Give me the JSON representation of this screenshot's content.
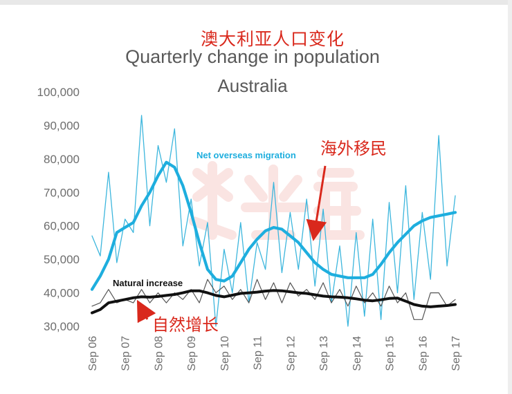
{
  "chart_data": {
    "type": "line",
    "title_cn": "澳大利亚人口变化",
    "title": "Quarterly change in population",
    "subtitle": "Australia",
    "ylim": [
      30000,
      100000
    ],
    "yticks": [
      30000,
      40000,
      50000,
      60000,
      70000,
      80000,
      90000,
      100000
    ],
    "ytick_labels": [
      "30,000",
      "40,000",
      "50,000",
      "60,000",
      "70,000",
      "80,000",
      "90,000",
      "100,000"
    ],
    "xtick_labels": [
      "Sep 06",
      "Sep 07",
      "Sep 08",
      "Sep 09",
      "Sep 10",
      "Sep 11",
      "Sep 12",
      "Sep 13",
      "Sep 14",
      "Sep 15",
      "Sep 16",
      "Sep 17"
    ],
    "x": [
      2006.75,
      2007.0,
      2007.25,
      2007.5,
      2007.75,
      2008.0,
      2008.25,
      2008.5,
      2008.75,
      2009.0,
      2009.25,
      2009.5,
      2009.75,
      2010.0,
      2010.25,
      2010.5,
      2010.75,
      2011.0,
      2011.25,
      2011.5,
      2011.75,
      2012.0,
      2012.25,
      2012.5,
      2012.75,
      2013.0,
      2013.25,
      2013.5,
      2013.75,
      2014.0,
      2014.25,
      2014.5,
      2014.75,
      2015.0,
      2015.25,
      2015.5,
      2015.75,
      2016.0,
      2016.25,
      2016.5,
      2016.75,
      2017.0,
      2017.25,
      2017.5,
      2017.75
    ],
    "series": [
      {
        "name": "Net overseas migration",
        "role": "quarterly",
        "color": "#3cb6dd",
        "values": [
          57000,
          51000,
          76000,
          49000,
          62000,
          58000,
          93000,
          60000,
          84000,
          73000,
          89000,
          54000,
          68000,
          48000,
          61000,
          30000,
          53000,
          40000,
          61000,
          37000,
          55000,
          47000,
          73000,
          46000,
          64000,
          47000,
          68000,
          42000,
          65000,
          37000,
          54000,
          30000,
          58000,
          33000,
          62000,
          32000,
          67000,
          40000,
          72000,
          38000,
          64000,
          44000,
          87000,
          48000,
          69000
        ]
      },
      {
        "name": "Net overseas migration",
        "role": "trend",
        "color": "#1eaede",
        "values": [
          41000,
          45000,
          50000,
          58000,
          59500,
          61000,
          66000,
          70000,
          75000,
          79000,
          77500,
          72000,
          64000,
          55000,
          47000,
          44000,
          43500,
          45000,
          49000,
          53000,
          56000,
          58500,
          59500,
          59000,
          57000,
          55000,
          52000,
          49000,
          47000,
          45500,
          45000,
          44500,
          44500,
          44500,
          45500,
          48500,
          52000,
          55000,
          57500,
          60000,
          61500,
          62500,
          63000,
          63500,
          64000
        ]
      },
      {
        "name": "Natural increase",
        "role": "quarterly",
        "color": "#555555",
        "values": [
          36000,
          37000,
          41000,
          37000,
          38000,
          37000,
          41000,
          37000,
          40000,
          37000,
          40000,
          38000,
          41000,
          37000,
          44000,
          40000,
          42000,
          38000,
          41000,
          37000,
          44000,
          38000,
          43000,
          37000,
          43000,
          39000,
          41000,
          38000,
          43000,
          37000,
          41000,
          36000,
          42000,
          37000,
          40000,
          36000,
          42000,
          37000,
          40000,
          32000,
          32000,
          40000,
          40000,
          36000,
          38000
        ]
      },
      {
        "name": "Natural increase",
        "role": "trend",
        "color": "#111111",
        "values": [
          34000,
          35000,
          37000,
          37500,
          38000,
          38500,
          38800,
          38700,
          38900,
          39200,
          39500,
          40000,
          40600,
          40600,
          40000,
          39200,
          38800,
          39300,
          39800,
          40000,
          40200,
          40500,
          40700,
          40600,
          40300,
          40000,
          39800,
          39400,
          39000,
          38800,
          38700,
          38500,
          38200,
          37800,
          37600,
          37900,
          38300,
          38400,
          37500,
          36500,
          36000,
          35800,
          36000,
          36200,
          36500
        ]
      }
    ],
    "annotations": {
      "nom_label": "Net overseas migration",
      "nat_label": "Natural increase",
      "nom_cn": "海外移民",
      "nat_cn": "自然增长"
    }
  }
}
